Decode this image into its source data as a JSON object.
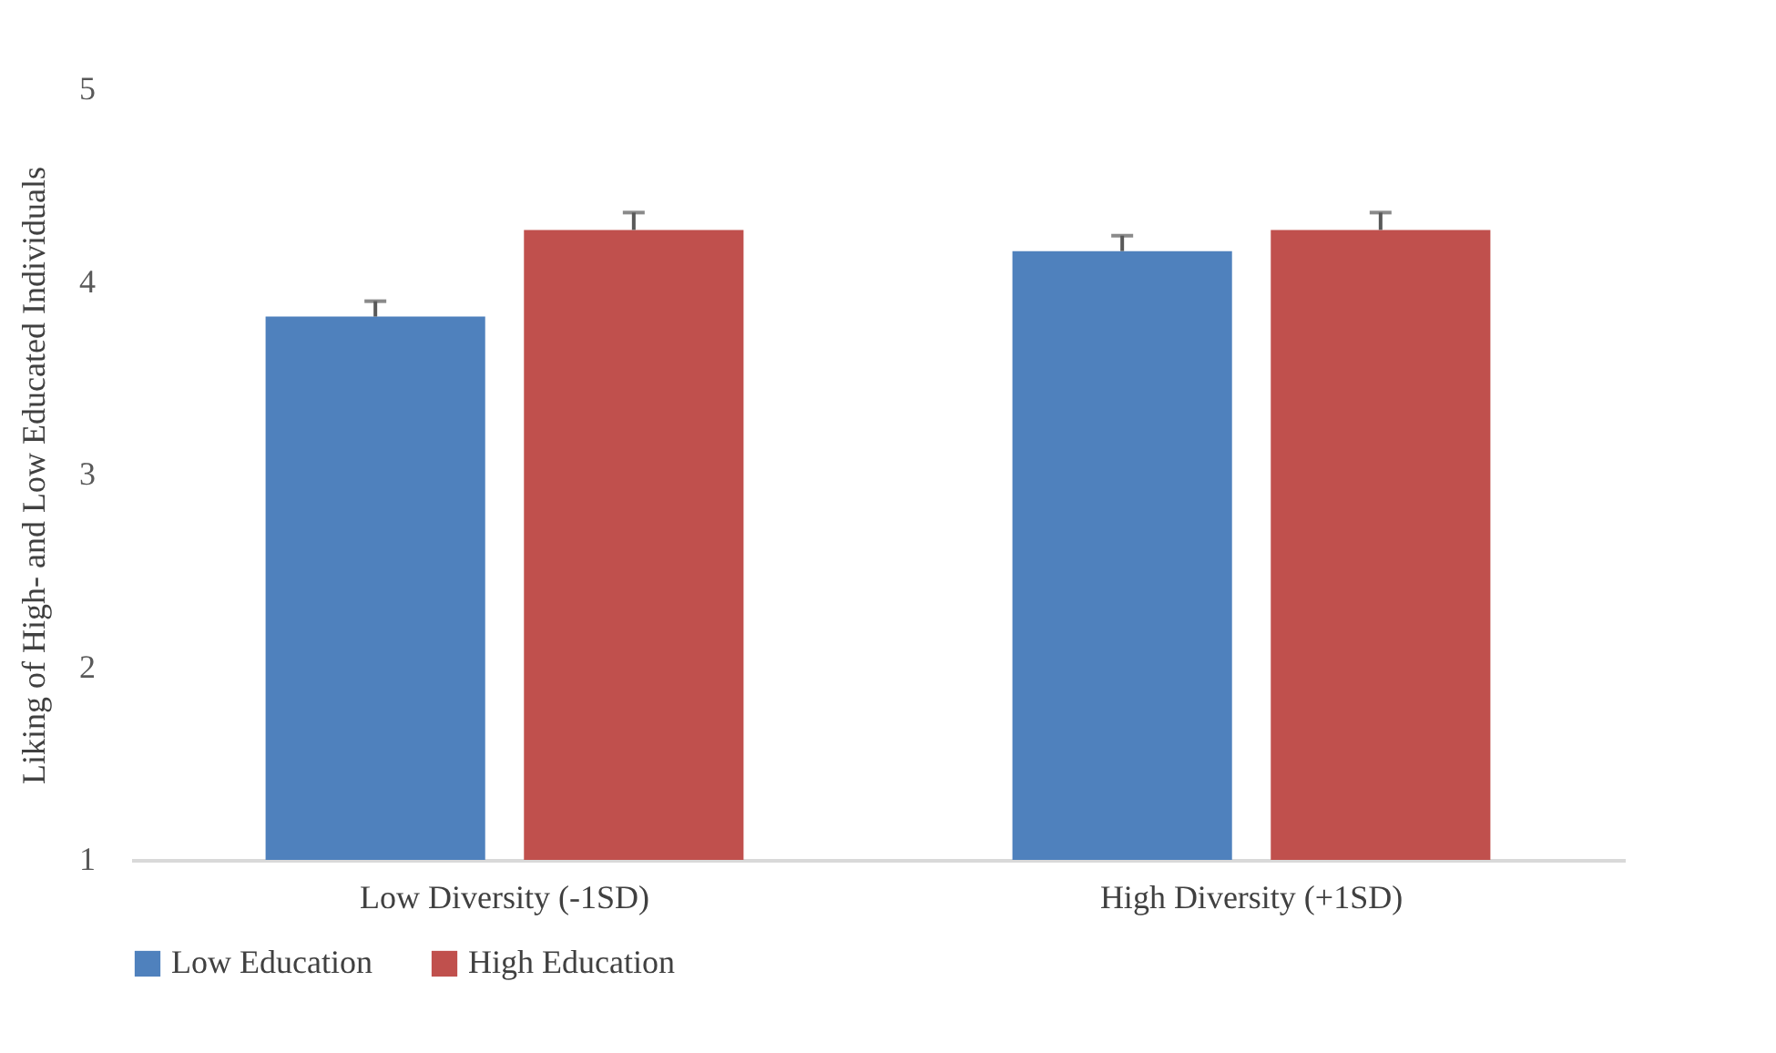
{
  "chart_data": {
    "type": "bar",
    "ylabel": "Liking of High- and Low Educated Individuals",
    "categories": [
      "Low Diversity (-1SD)",
      "High Diversity (+1SD)"
    ],
    "series": [
      {
        "name": "Low Education",
        "color": "#4f81bd",
        "values": [
          3.82,
          4.16
        ],
        "errors": [
          [
            3.82,
            3.9
          ],
          [
            4.16,
            4.24
          ]
        ]
      },
      {
        "name": "High Education",
        "color": "#c0504d",
        "values": [
          4.27,
          4.27
        ],
        "errors": [
          [
            4.27,
            4.36
          ],
          [
            4.27,
            4.36
          ]
        ]
      }
    ],
    "ylim": [
      1,
      5
    ],
    "yticks": [
      1,
      2,
      3,
      4,
      5
    ],
    "grid": false,
    "legend": "bottom"
  }
}
